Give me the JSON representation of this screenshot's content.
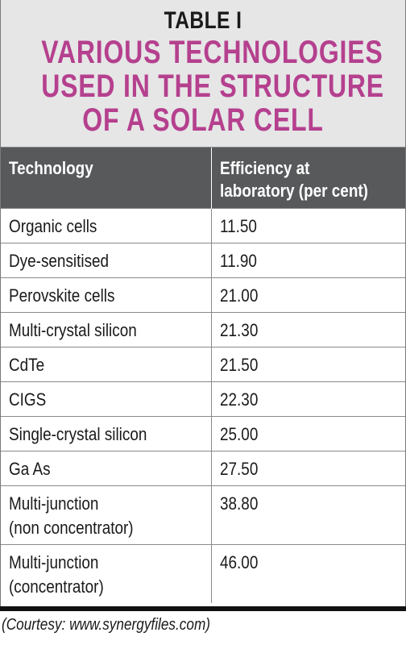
{
  "header": {
    "table_label": "TABLE I",
    "title_lines": [
      "VARIOUS TECHNOLOGIES",
      "USED IN THE STRUCTURE",
      "OF A SOLAR CELL"
    ]
  },
  "table": {
    "columns": [
      "Technology",
      "Efficiency at laboratory (per cent)"
    ],
    "column_header_lines": [
      [
        "Technology"
      ],
      [
        "Efficiency at",
        "laboratory (per cent)"
      ]
    ],
    "rows": [
      {
        "technology": [
          "Organic cells"
        ],
        "efficiency": "11.50"
      },
      {
        "technology": [
          "Dye-sensitised"
        ],
        "efficiency": "11.90"
      },
      {
        "technology": [
          "Perovskite cells"
        ],
        "efficiency": "21.00"
      },
      {
        "technology": [
          "Multi-crystal silicon"
        ],
        "efficiency": "21.30"
      },
      {
        "technology": [
          "CdTe"
        ],
        "efficiency": "21.50"
      },
      {
        "technology": [
          "CIGS"
        ],
        "efficiency": "22.30"
      },
      {
        "technology": [
          "Single-crystal silicon"
        ],
        "efficiency": "25.00"
      },
      {
        "technology": [
          "Ga As"
        ],
        "efficiency": "27.50"
      },
      {
        "technology": [
          "Multi-junction",
          "(non concentrator)"
        ],
        "efficiency": "38.80"
      },
      {
        "technology": [
          "Multi-junction",
          "(concentrator)"
        ],
        "efficiency": "46.00"
      }
    ]
  },
  "source": "(Courtesy: www.synergyfiles.com)",
  "colors": {
    "title_magenta": "#b5408e",
    "header_bg": "#58595b",
    "title_bg": "#e6e6e7"
  }
}
